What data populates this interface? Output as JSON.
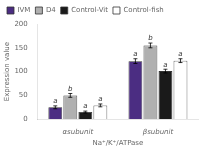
{
  "chart_data": {
    "type": "bar",
    "categories": [
      "αsubunit",
      "βsubunit"
    ],
    "xlabel": "Na⁺/K⁺/ATPase",
    "ylabel": "Expression value",
    "series": [
      {
        "name": "IVM",
        "color": "#4b2d82",
        "values": [
          25,
          122
        ],
        "errors": [
          3,
          5
        ],
        "letters": [
          "a",
          "a"
        ]
      },
      {
        "name": "D4",
        "color": "#b0b0b0",
        "values": [
          50,
          155
        ],
        "errors": [
          4,
          5
        ],
        "letters": [
          "b",
          "b"
        ]
      },
      {
        "name": "Control-Vit",
        "color": "#1a1a1a",
        "values": [
          15,
          101
        ],
        "errors": [
          2,
          4
        ],
        "letters": [
          "a",
          "a"
        ]
      },
      {
        "name": "Control-fish",
        "color": "#ffffff",
        "values": [
          29,
          123
        ],
        "errors": [
          3,
          4
        ],
        "letters": [
          "a",
          "a"
        ]
      }
    ],
    "ylim": [
      0,
      200
    ],
    "yticks": [
      0,
      50,
      100,
      150,
      200
    ],
    "grid": false,
    "legend": "upper left"
  }
}
